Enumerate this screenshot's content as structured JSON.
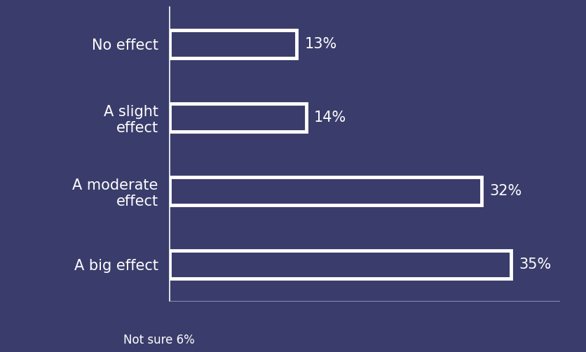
{
  "chart_data": {
    "type": "bar",
    "orientation": "horizontal",
    "categories": [
      "No effect",
      "A slight effect",
      "A moderate effect",
      "A big effect"
    ],
    "values": [
      13,
      14,
      32,
      35
    ],
    "value_labels": [
      "13%",
      "14%",
      "32%",
      "35%"
    ],
    "data_labels": true,
    "color": "#ffffff",
    "xlim": [
      0,
      40
    ],
    "xticks": [],
    "tick_labels": "y",
    "grid": false,
    "annotations": [
      "Not sure 6%"
    ]
  }
}
